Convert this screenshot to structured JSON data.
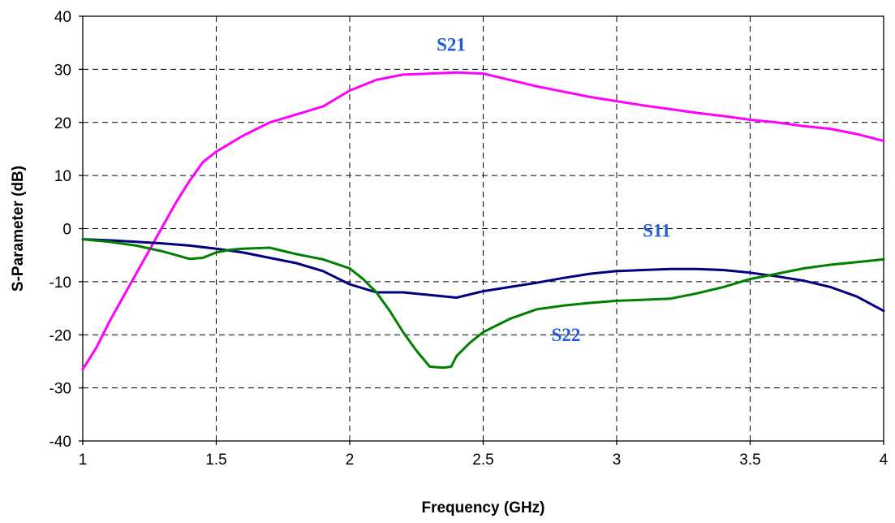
{
  "chart_data": {
    "type": "line",
    "title": "",
    "xlabel": "Frequency (GHz)",
    "ylabel": "S-Parameter (dB)",
    "xlim": [
      1,
      4
    ],
    "ylim": [
      -40,
      40
    ],
    "x_ticks": [
      1,
      1.5,
      2,
      2.5,
      3,
      3.5,
      4
    ],
    "y_ticks": [
      -40,
      -30,
      -20,
      -10,
      0,
      10,
      20,
      30,
      40
    ],
    "x_tick_labels": [
      "1",
      "1.5",
      "2",
      "2.5",
      "3",
      "3.5",
      "4"
    ],
    "y_tick_labels": [
      "-40",
      "-30",
      "-20",
      "-10",
      "0",
      "10",
      "20",
      "30",
      "40"
    ],
    "grid": true,
    "series": [
      {
        "name": "S21",
        "color": "#ff00ff",
        "x": [
          1.0,
          1.05,
          1.1,
          1.15,
          1.2,
          1.25,
          1.3,
          1.35,
          1.4,
          1.45,
          1.5,
          1.55,
          1.6,
          1.7,
          1.8,
          1.9,
          2.0,
          2.1,
          2.2,
          2.3,
          2.4,
          2.5,
          2.6,
          2.7,
          2.8,
          2.9,
          3.0,
          3.1,
          3.2,
          3.3,
          3.4,
          3.5,
          3.6,
          3.7,
          3.8,
          3.9,
          4.0
        ],
        "y": [
          -26.5,
          -22.5,
          -17.5,
          -13.0,
          -8.5,
          -4.0,
          0.5,
          5.0,
          9.0,
          12.5,
          14.5,
          16.0,
          17.5,
          20.0,
          21.5,
          23.0,
          26.0,
          28.0,
          29.0,
          29.2,
          29.4,
          29.2,
          28.0,
          26.8,
          25.8,
          24.8,
          24.0,
          23.2,
          22.5,
          21.8,
          21.2,
          20.5,
          20.0,
          19.3,
          18.8,
          17.8,
          16.5
        ]
      },
      {
        "name": "S11",
        "color": "#000080",
        "x": [
          1.0,
          1.1,
          1.2,
          1.3,
          1.4,
          1.5,
          1.6,
          1.7,
          1.8,
          1.9,
          2.0,
          2.1,
          2.2,
          2.3,
          2.4,
          2.5,
          2.6,
          2.7,
          2.8,
          2.9,
          3.0,
          3.1,
          3.2,
          3.3,
          3.4,
          3.5,
          3.6,
          3.7,
          3.8,
          3.9,
          4.0
        ],
        "y": [
          -2.0,
          -2.2,
          -2.5,
          -2.8,
          -3.2,
          -3.8,
          -4.5,
          -5.5,
          -6.5,
          -8.0,
          -10.5,
          -12.0,
          -12.0,
          -12.5,
          -13.0,
          -11.8,
          -11.0,
          -10.2,
          -9.3,
          -8.5,
          -8.0,
          -7.8,
          -7.6,
          -7.6,
          -7.8,
          -8.3,
          -9.0,
          -9.8,
          -11.0,
          -12.8,
          -15.5
        ]
      },
      {
        "name": "S22",
        "color": "#008000",
        "x": [
          1.0,
          1.1,
          1.2,
          1.3,
          1.35,
          1.4,
          1.45,
          1.5,
          1.55,
          1.6,
          1.7,
          1.8,
          1.9,
          2.0,
          2.05,
          2.1,
          2.15,
          2.2,
          2.25,
          2.3,
          2.35,
          2.38,
          2.4,
          2.45,
          2.5,
          2.6,
          2.7,
          2.8,
          2.9,
          3.0,
          3.1,
          3.2,
          3.3,
          3.4,
          3.5,
          3.6,
          3.7,
          3.8,
          3.9,
          4.0
        ],
        "y": [
          -2.0,
          -2.5,
          -3.2,
          -4.3,
          -5.0,
          -5.7,
          -5.5,
          -4.5,
          -4.0,
          -3.8,
          -3.6,
          -4.8,
          -5.8,
          -7.5,
          -9.5,
          -12.0,
          -15.5,
          -19.5,
          -23.0,
          -26.0,
          -26.2,
          -26.0,
          -24.0,
          -21.5,
          -19.5,
          -17.0,
          -15.2,
          -14.5,
          -14.0,
          -13.6,
          -13.4,
          -13.2,
          -12.2,
          -11.0,
          -9.5,
          -8.5,
          -7.5,
          -6.8,
          -6.3,
          -5.8
        ]
      }
    ],
    "annotations": [
      {
        "text": "S21",
        "x": 2.38,
        "y": 33.5,
        "color": "#1f5be0"
      },
      {
        "text": "S11",
        "x": 3.15,
        "y": -1.5,
        "color": "#1f5be0"
      },
      {
        "text": "S22",
        "x": 2.81,
        "y": -21.2,
        "color": "#1f5be0"
      }
    ]
  }
}
